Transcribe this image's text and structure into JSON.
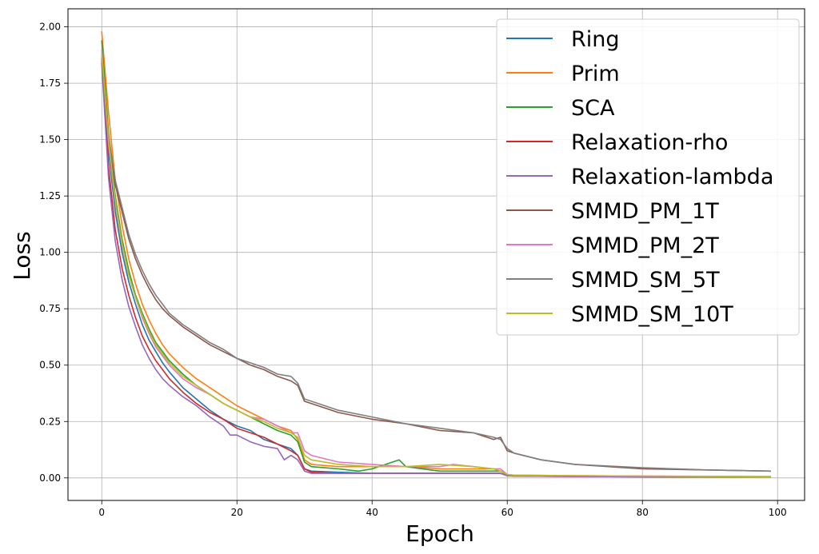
{
  "chart_data": {
    "type": "line",
    "xlabel": "Epoch",
    "ylabel": "Loss",
    "xlim": [
      -5,
      104
    ],
    "ylim": [
      -0.1,
      2.08
    ],
    "xticks": [
      0,
      20,
      40,
      60,
      80,
      100
    ],
    "yticks": [
      0.0,
      0.25,
      0.5,
      0.75,
      1.0,
      1.25,
      1.5,
      1.75,
      2.0
    ],
    "xtick_labels": [
      "0",
      "20",
      "40",
      "60",
      "80",
      "100"
    ],
    "ytick_labels": [
      "0.00",
      "0.25",
      "0.50",
      "0.75",
      "1.00",
      "1.25",
      "1.50",
      "1.75",
      "2.00"
    ],
    "grid": true,
    "legend_position": "top-right",
    "colors": {
      "Ring": "#1f77b4",
      "Prim": "#ff7f0e",
      "SCA": "#2ca02c",
      "Relaxation-rho": "#d62728",
      "Relaxation-lambda": "#9467bd",
      "SMMD_PM_1T": "#8c564b",
      "SMMD_PM_2T": "#e377c2",
      "SMMD_SM_5T": "#7f7f7f",
      "SMMD_SM_10T": "#bcbd22"
    },
    "series": [
      {
        "name": "Ring",
        "x": [
          0,
          1,
          2,
          3,
          4,
          5,
          6,
          7,
          8,
          9,
          10,
          12,
          14,
          16,
          18,
          20,
          22,
          24,
          26,
          28,
          29,
          30,
          31,
          35,
          40,
          45,
          50,
          55,
          59,
          60,
          61,
          70,
          80,
          90,
          99
        ],
        "y": [
          1.88,
          1.45,
          1.18,
          1.0,
          0.87,
          0.77,
          0.68,
          0.61,
          0.56,
          0.51,
          0.47,
          0.4,
          0.35,
          0.3,
          0.26,
          0.23,
          0.21,
          0.17,
          0.15,
          0.13,
          0.1,
          0.04,
          0.03,
          0.025,
          0.02,
          0.02,
          0.02,
          0.02,
          0.02,
          0.01,
          0.01,
          0.008,
          0.006,
          0.005,
          0.005
        ]
      },
      {
        "name": "Prim",
        "x": [
          0,
          1,
          2,
          3,
          4,
          5,
          6,
          7,
          8,
          9,
          10,
          12,
          14,
          16,
          18,
          20,
          22,
          24,
          26,
          28,
          29,
          30,
          31,
          35,
          40,
          45,
          50,
          55,
          58,
          59,
          60,
          61,
          70,
          80,
          90,
          99
        ],
        "y": [
          1.98,
          1.62,
          1.32,
          1.12,
          0.97,
          0.86,
          0.77,
          0.7,
          0.64,
          0.59,
          0.55,
          0.49,
          0.44,
          0.4,
          0.36,
          0.32,
          0.29,
          0.26,
          0.23,
          0.21,
          0.17,
          0.08,
          0.06,
          0.05,
          0.05,
          0.05,
          0.04,
          0.04,
          0.04,
          0.03,
          0.015,
          0.012,
          0.01,
          0.008,
          0.007,
          0.006
        ]
      },
      {
        "name": "SCA",
        "x": [
          0,
          1,
          2,
          3,
          4,
          5,
          6,
          7,
          8,
          9,
          10,
          12,
          14,
          16,
          18,
          20,
          22,
          24,
          26,
          28,
          29,
          30,
          31,
          35,
          38,
          40,
          42,
          44,
          45,
          50,
          55,
          59,
          60,
          61,
          70,
          80,
          90,
          99
        ],
        "y": [
          1.94,
          1.53,
          1.25,
          1.06,
          0.92,
          0.81,
          0.73,
          0.66,
          0.6,
          0.56,
          0.52,
          0.46,
          0.41,
          0.37,
          0.33,
          0.3,
          0.27,
          0.24,
          0.21,
          0.19,
          0.16,
          0.07,
          0.05,
          0.04,
          0.03,
          0.04,
          0.06,
          0.08,
          0.05,
          0.03,
          0.03,
          0.03,
          0.012,
          0.01,
          0.008,
          0.006,
          0.005,
          0.005
        ]
      },
      {
        "name": "Relaxation-rho",
        "x": [
          0,
          1,
          2,
          3,
          4,
          5,
          6,
          7,
          8,
          9,
          10,
          12,
          14,
          16,
          18,
          20,
          22,
          24,
          26,
          28,
          29,
          30,
          31,
          35,
          40,
          45,
          50,
          55,
          59,
          60,
          61,
          70,
          80,
          90,
          99
        ],
        "y": [
          1.86,
          1.38,
          1.1,
          0.93,
          0.81,
          0.71,
          0.63,
          0.57,
          0.52,
          0.48,
          0.44,
          0.38,
          0.33,
          0.29,
          0.26,
          0.22,
          0.2,
          0.18,
          0.15,
          0.12,
          0.1,
          0.04,
          0.025,
          0.02,
          0.02,
          0.02,
          0.02,
          0.02,
          0.02,
          0.01,
          0.008,
          0.006,
          0.005,
          0.004,
          0.004
        ]
      },
      {
        "name": "Relaxation-lambda",
        "x": [
          0,
          1,
          2,
          3,
          4,
          5,
          6,
          7,
          8,
          9,
          10,
          12,
          14,
          16,
          18,
          19,
          20,
          22,
          24,
          26,
          27,
          28,
          29,
          30,
          31,
          35,
          40,
          45,
          50,
          55,
          59,
          60,
          61,
          70,
          80,
          90,
          99
        ],
        "y": [
          1.84,
          1.33,
          1.05,
          0.88,
          0.76,
          0.67,
          0.59,
          0.53,
          0.48,
          0.44,
          0.41,
          0.36,
          0.32,
          0.27,
          0.23,
          0.19,
          0.19,
          0.16,
          0.14,
          0.13,
          0.08,
          0.1,
          0.08,
          0.03,
          0.02,
          0.02,
          0.02,
          0.02,
          0.02,
          0.02,
          0.02,
          0.01,
          0.008,
          0.006,
          0.005,
          0.004,
          0.004
        ]
      },
      {
        "name": "SMMD_PM_1T",
        "x": [
          0,
          1,
          2,
          3,
          4,
          5,
          6,
          7,
          8,
          9,
          10,
          12,
          14,
          16,
          18,
          20,
          22,
          24,
          26,
          28,
          29,
          30,
          31,
          35,
          40,
          45,
          50,
          55,
          58,
          59,
          60,
          61,
          65,
          70,
          80,
          90,
          99
        ],
        "y": [
          1.85,
          1.5,
          1.3,
          1.18,
          1.06,
          0.97,
          0.9,
          0.84,
          0.79,
          0.75,
          0.72,
          0.67,
          0.63,
          0.59,
          0.56,
          0.53,
          0.5,
          0.48,
          0.45,
          0.43,
          0.41,
          0.34,
          0.33,
          0.29,
          0.26,
          0.24,
          0.21,
          0.2,
          0.17,
          0.18,
          0.12,
          0.11,
          0.08,
          0.06,
          0.04,
          0.035,
          0.03
        ]
      },
      {
        "name": "SMMD_PM_2T",
        "x": [
          0,
          1,
          2,
          3,
          4,
          5,
          6,
          7,
          8,
          9,
          10,
          12,
          14,
          16,
          18,
          20,
          22,
          24,
          26,
          28,
          29,
          30,
          31,
          35,
          40,
          45,
          50,
          52,
          55,
          58,
          59,
          60,
          61,
          70,
          80,
          90,
          99
        ],
        "y": [
          1.9,
          1.48,
          1.22,
          1.03,
          0.9,
          0.8,
          0.71,
          0.64,
          0.58,
          0.54,
          0.5,
          0.44,
          0.4,
          0.37,
          0.33,
          0.3,
          0.27,
          0.26,
          0.23,
          0.2,
          0.2,
          0.12,
          0.1,
          0.07,
          0.06,
          0.05,
          0.05,
          0.06,
          0.05,
          0.04,
          0.04,
          0.015,
          0.012,
          0.01,
          0.008,
          0.006,
          0.005
        ]
      },
      {
        "name": "SMMD_SM_5T",
        "x": [
          0,
          1,
          2,
          3,
          4,
          5,
          6,
          7,
          8,
          9,
          10,
          12,
          14,
          16,
          18,
          20,
          22,
          24,
          26,
          28,
          29,
          30,
          31,
          35,
          40,
          45,
          50,
          55,
          58,
          59,
          60,
          61,
          65,
          70,
          80,
          90,
          99
        ],
        "y": [
          1.86,
          1.52,
          1.32,
          1.2,
          1.08,
          0.99,
          0.92,
          0.86,
          0.81,
          0.77,
          0.73,
          0.68,
          0.64,
          0.6,
          0.57,
          0.53,
          0.51,
          0.49,
          0.46,
          0.45,
          0.42,
          0.35,
          0.34,
          0.3,
          0.27,
          0.24,
          0.22,
          0.2,
          0.18,
          0.17,
          0.13,
          0.11,
          0.08,
          0.06,
          0.045,
          0.035,
          0.03
        ]
      },
      {
        "name": "SMMD_SM_10T",
        "x": [
          0,
          1,
          2,
          3,
          4,
          5,
          6,
          7,
          8,
          9,
          10,
          12,
          14,
          16,
          18,
          20,
          22,
          24,
          26,
          28,
          29,
          30,
          31,
          35,
          40,
          45,
          50,
          55,
          58,
          59,
          60,
          61,
          70,
          80,
          90,
          99
        ],
        "y": [
          1.88,
          1.5,
          1.23,
          1.04,
          0.9,
          0.8,
          0.72,
          0.65,
          0.59,
          0.55,
          0.51,
          0.45,
          0.41,
          0.37,
          0.33,
          0.3,
          0.27,
          0.25,
          0.22,
          0.2,
          0.18,
          0.1,
          0.08,
          0.06,
          0.05,
          0.05,
          0.06,
          0.05,
          0.04,
          0.03,
          0.015,
          0.012,
          0.01,
          0.008,
          0.006,
          0.005
        ]
      }
    ]
  }
}
